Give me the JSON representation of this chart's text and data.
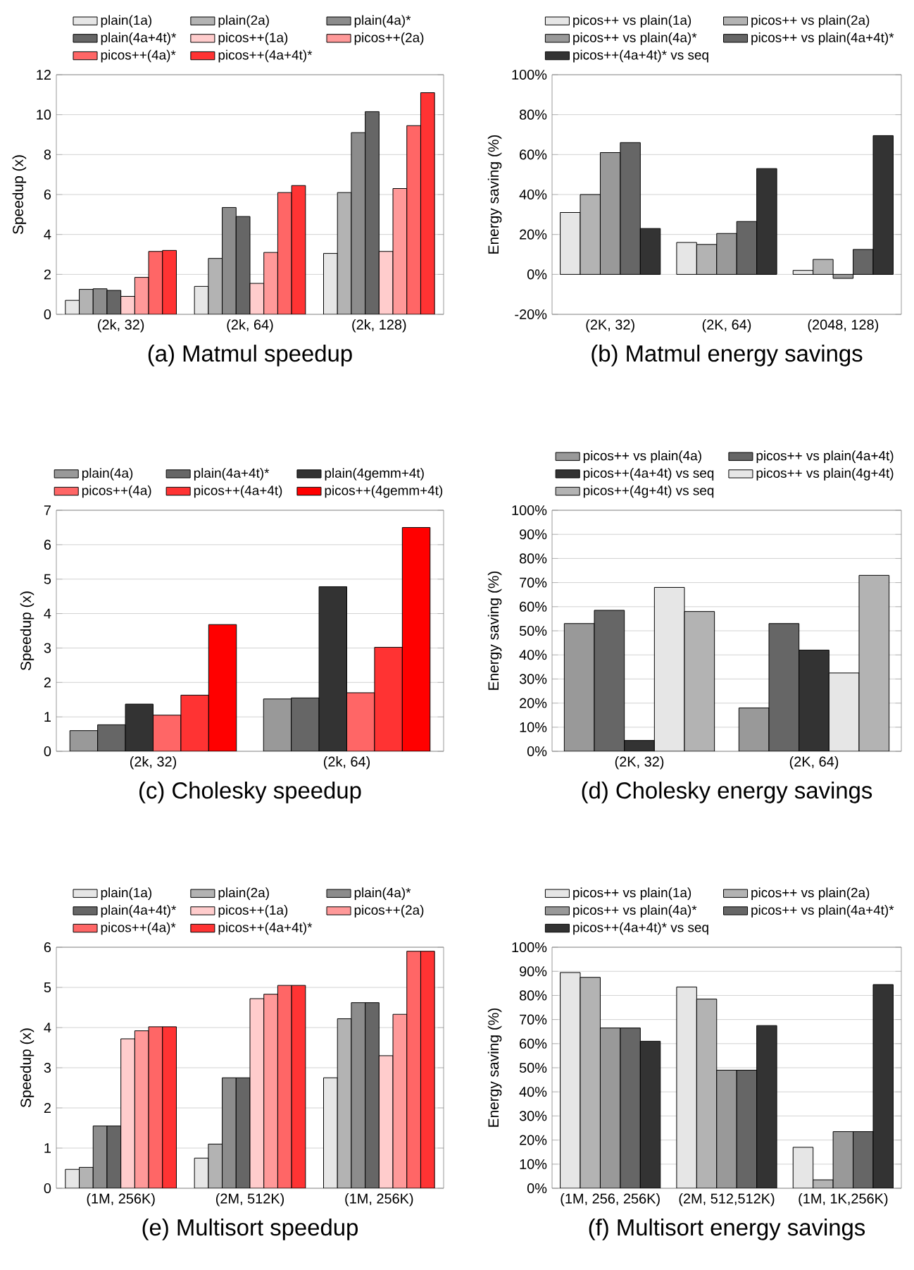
{
  "chart_data": [
    {
      "type": "bar",
      "title": "(a) Matmul speedup",
      "ylabel": "Speedup (x)",
      "categories": [
        "(2k, 32)",
        "(2k, 64)",
        "(2k, 128)"
      ],
      "ylim": [
        0,
        12
      ],
      "yticks": [
        0,
        2,
        4,
        6,
        8,
        10,
        12
      ],
      "grid": "y",
      "legend": "top",
      "series": [
        {
          "name": "plain(1a)",
          "color": "#e6e6e6",
          "values": [
            0.7,
            1.4,
            3.05
          ]
        },
        {
          "name": "plain(2a)",
          "color": "#b3b3b3",
          "values": [
            1.25,
            2.8,
            6.1
          ]
        },
        {
          "name": "plain(4a)*",
          "color": "#8c8c8c",
          "values": [
            1.28,
            5.35,
            9.1
          ]
        },
        {
          "name": "plain(4a+4t)*",
          "color": "#666666",
          "values": [
            1.2,
            4.9,
            10.15
          ]
        },
        {
          "name": "picos++(1a)",
          "color": "#ffcccc",
          "values": [
            0.9,
            1.55,
            3.15
          ]
        },
        {
          "name": "picos++(2a)",
          "color": "#ff9999",
          "values": [
            1.85,
            3.1,
            6.3
          ]
        },
        {
          "name": "picos++(4a)*",
          "color": "#ff6666",
          "values": [
            3.15,
            6.1,
            9.45
          ]
        },
        {
          "name": "picos++(4a+4t)*",
          "color": "#ff3333",
          "values": [
            3.2,
            6.45,
            11.1
          ]
        }
      ]
    },
    {
      "type": "bar",
      "title": "(b) Matmul energy savings",
      "ylabel": "Energy saving (%)",
      "categories": [
        "(2K, 32)",
        "(2K, 64)",
        "(2048, 128)"
      ],
      "ylim": [
        -20,
        100
      ],
      "yticks": [
        {
          "value": -20,
          "label": "-20%"
        },
        {
          "value": 0,
          "label": "0%"
        },
        {
          "value": 20,
          "label": "20%"
        },
        {
          "value": 40,
          "label": "40%"
        },
        {
          "value": 60,
          "label": "60%"
        },
        {
          "value": 80,
          "label": "80%"
        },
        {
          "value": 100,
          "label": "100%"
        }
      ],
      "grid": "y",
      "legend": "top",
      "series": [
        {
          "name": "picos++ vs plain(1a)",
          "color": "#e6e6e6",
          "values": [
            31,
            16,
            2
          ]
        },
        {
          "name": "picos++ vs plain(2a)",
          "color": "#b3b3b3",
          "values": [
            40,
            15,
            7.5
          ]
        },
        {
          "name": "picos++ vs plain(4a)*",
          "color": "#999999",
          "values": [
            61,
            20.5,
            -2
          ]
        },
        {
          "name": "picos++ vs plain(4a+4t)*",
          "color": "#666666",
          "values": [
            66,
            26.5,
            12.5
          ]
        },
        {
          "name": "picos++(4a+4t)* vs seq",
          "color": "#333333",
          "values": [
            23,
            53,
            69.5
          ]
        }
      ]
    },
    {
      "type": "bar",
      "title": "(c) Cholesky speedup",
      "ylabel": "Speedup (x)",
      "categories": [
        "(2k, 32)",
        "(2k, 64)"
      ],
      "ylim": [
        0,
        7
      ],
      "yticks": [
        0,
        1,
        2,
        3,
        4,
        5,
        6,
        7
      ],
      "grid": "y",
      "legend": "top",
      "series": [
        {
          "name": "plain(4a)",
          "color": "#999999",
          "values": [
            0.6,
            1.52
          ]
        },
        {
          "name": "plain(4a+4t)*",
          "color": "#666666",
          "values": [
            0.77,
            1.55
          ]
        },
        {
          "name": "plain(4gemm+4t)",
          "color": "#333333",
          "values": [
            1.37,
            4.78
          ]
        },
        {
          "name": "picos++(4a)",
          "color": "#ff6666",
          "values": [
            1.05,
            1.7
          ]
        },
        {
          "name": "picos++(4a+4t)",
          "color": "#ff3333",
          "values": [
            1.63,
            3.02
          ]
        },
        {
          "name": "picos++(4gemm+4t)",
          "color": "#ff0000",
          "values": [
            3.68,
            6.5
          ]
        }
      ]
    },
    {
      "type": "bar",
      "title": "(d) Cholesky energy savings",
      "ylabel": "Energy saving (%)",
      "categories": [
        "(2K, 32)",
        "(2K, 64)"
      ],
      "ylim": [
        0,
        100
      ],
      "yticks": [
        {
          "value": 0,
          "label": "0%"
        },
        {
          "value": 10,
          "label": "10%"
        },
        {
          "value": 20,
          "label": "20%"
        },
        {
          "value": 30,
          "label": "30%"
        },
        {
          "value": 40,
          "label": "40%"
        },
        {
          "value": 50,
          "label": "50%"
        },
        {
          "value": 60,
          "label": "60%"
        },
        {
          "value": 70,
          "label": "70%"
        },
        {
          "value": 80,
          "label": "80%"
        },
        {
          "value": 90,
          "label": "90%"
        },
        {
          "value": 100,
          "label": "100%"
        }
      ],
      "grid": "y",
      "legend": "top",
      "series": [
        {
          "name": "picos++ vs plain(4a)",
          "color": "#999999",
          "values": [
            53,
            18
          ]
        },
        {
          "name": "picos++ vs plain(4a+4t)",
          "color": "#666666",
          "values": [
            58.5,
            53
          ]
        },
        {
          "name": "picos++(4a+4t) vs seq",
          "color": "#333333",
          "values": [
            4.5,
            42
          ]
        },
        {
          "name": "picos++ vs plain(4g+4t)",
          "color": "#e6e6e6",
          "values": [
            68,
            32.5
          ]
        },
        {
          "name": "picos++(4g+4t) vs seq",
          "color": "#b3b3b3",
          "values": [
            58,
            73
          ]
        }
      ]
    },
    {
      "type": "bar",
      "title": "(e) Multisort speedup",
      "ylabel": "Speedup (x)",
      "categories": [
        "(1M, 256K)",
        "(2M, 512K)",
        "(1M, 256K)"
      ],
      "ylim": [
        0,
        6
      ],
      "yticks": [
        0,
        1,
        2,
        3,
        4,
        5,
        6
      ],
      "grid": "y",
      "legend": "top",
      "series": [
        {
          "name": "plain(1a)",
          "color": "#e6e6e6",
          "values": [
            0.47,
            0.75,
            2.75
          ]
        },
        {
          "name": "plain(2a)",
          "color": "#b3b3b3",
          "values": [
            0.52,
            1.1,
            4.22
          ]
        },
        {
          "name": "plain(4a)*",
          "color": "#8c8c8c",
          "values": [
            1.55,
            2.75,
            4.62
          ]
        },
        {
          "name": "plain(4a+4t)*",
          "color": "#666666",
          "values": [
            1.55,
            2.75,
            4.62
          ]
        },
        {
          "name": "picos++(1a)",
          "color": "#ffcccc",
          "values": [
            3.72,
            4.72,
            3.3
          ]
        },
        {
          "name": "picos++(2a)",
          "color": "#ff9999",
          "values": [
            3.92,
            4.83,
            4.33
          ]
        },
        {
          "name": "picos++(4a)*",
          "color": "#ff6666",
          "values": [
            4.02,
            5.05,
            5.9
          ]
        },
        {
          "name": "picos++(4a+4t)*",
          "color": "#ff3333",
          "values": [
            4.02,
            5.05,
            5.9
          ]
        }
      ]
    },
    {
      "type": "bar",
      "title": "(f) Multisort energy savings",
      "ylabel": "Energy saving (%)",
      "categories": [
        "(1M, 256, 256K)",
        "(2M, 512,512K)",
        "(1M, 1K,256K)"
      ],
      "ylim": [
        0,
        100
      ],
      "yticks": [
        {
          "value": 0,
          "label": "0%"
        },
        {
          "value": 10,
          "label": "10%"
        },
        {
          "value": 20,
          "label": "20%"
        },
        {
          "value": 30,
          "label": "30%"
        },
        {
          "value": 40,
          "label": "40%"
        },
        {
          "value": 50,
          "label": "50%"
        },
        {
          "value": 60,
          "label": "60%"
        },
        {
          "value": 70,
          "label": "70%"
        },
        {
          "value": 80,
          "label": "80%"
        },
        {
          "value": 90,
          "label": "90%"
        },
        {
          "value": 100,
          "label": "100%"
        }
      ],
      "grid": "y",
      "legend": "top",
      "series": [
        {
          "name": "picos++ vs plain(1a)",
          "color": "#e6e6e6",
          "values": [
            89.5,
            83.5,
            17
          ]
        },
        {
          "name": "picos++ vs plain(2a)",
          "color": "#b3b3b3",
          "values": [
            87.5,
            78.5,
            3.5
          ]
        },
        {
          "name": "picos++ vs plain(4a)*",
          "color": "#999999",
          "values": [
            66.5,
            49,
            23.5
          ]
        },
        {
          "name": "picos++ vs plain(4a+4t)*",
          "color": "#666666",
          "values": [
            66.5,
            49,
            23.5
          ]
        },
        {
          "name": "picos++(4a+4t)* vs seq",
          "color": "#333333",
          "values": [
            61,
            67.5,
            84.5
          ]
        }
      ]
    }
  ]
}
